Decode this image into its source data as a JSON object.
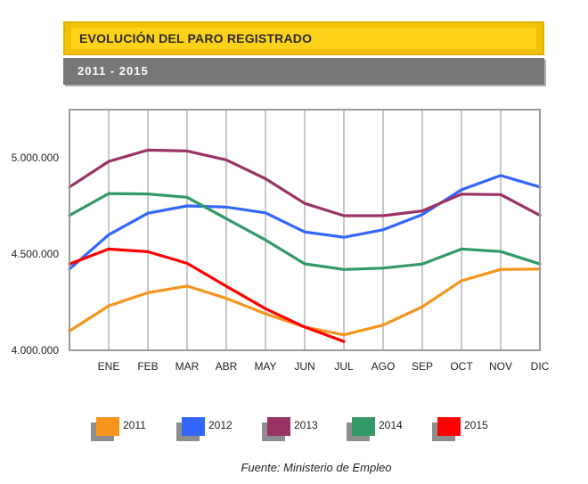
{
  "header": {
    "title": "EVOLUCIÓN DEL PARO REGISTRADO",
    "subtitle": "2011 - 2015"
  },
  "source": "Fuente: Ministerio de Empleo",
  "chart_data": {
    "type": "line",
    "title": "EVOLUCIÓN DEL PARO REGISTRADO",
    "subtitle": "2011 - 2015",
    "xlabel": "",
    "ylabel": "",
    "categories": [
      "",
      "ENE",
      "FEB",
      "MAR",
      "ABR",
      "MAY",
      "JUN",
      "JUL",
      "AGO",
      "SEP",
      "OCT",
      "NOV",
      "DIC"
    ],
    "ylim": [
      4000000,
      5250000
    ],
    "yticks": [
      {
        "value": 4000000,
        "label": "4.000.000"
      },
      {
        "value": 4500000,
        "label": "4.500.000"
      },
      {
        "value": 5000000,
        "label": "5.000.000"
      }
    ],
    "grid": "vertical",
    "legend_position": "bottom",
    "series": [
      {
        "name": "2011",
        "color": "#f7941d",
        "values": [
          4100000,
          4231000,
          4299000,
          4334000,
          4270000,
          4190000,
          4121000,
          4080000,
          4131000,
          4226000,
          4361000,
          4420000,
          4422000
        ]
      },
      {
        "name": "2012",
        "color": "#3366ff",
        "values": [
          4422000,
          4600000,
          4712000,
          4750000,
          4744000,
          4714000,
          4615000,
          4587000,
          4626000,
          4705000,
          4834000,
          4908000,
          4848000
        ]
      },
      {
        "name": "2013",
        "color": "#993366",
        "values": [
          4848000,
          4981000,
          5040000,
          5035000,
          4989000,
          4891000,
          4763000,
          4699000,
          4699000,
          4724000,
          4811000,
          4809000,
          4701000
        ]
      },
      {
        "name": "2014",
        "color": "#339966",
        "values": [
          4701000,
          4814000,
          4812000,
          4795000,
          4684000,
          4573000,
          4449000,
          4420000,
          4427000,
          4448000,
          4526000,
          4513000,
          4448000
        ]
      },
      {
        "name": "2015",
        "color": "#ff0000",
        "values": [
          4448000,
          4526000,
          4512000,
          4452000,
          4333000,
          4216000,
          4121000,
          4046000,
          null,
          null,
          null,
          null,
          null
        ]
      }
    ]
  }
}
